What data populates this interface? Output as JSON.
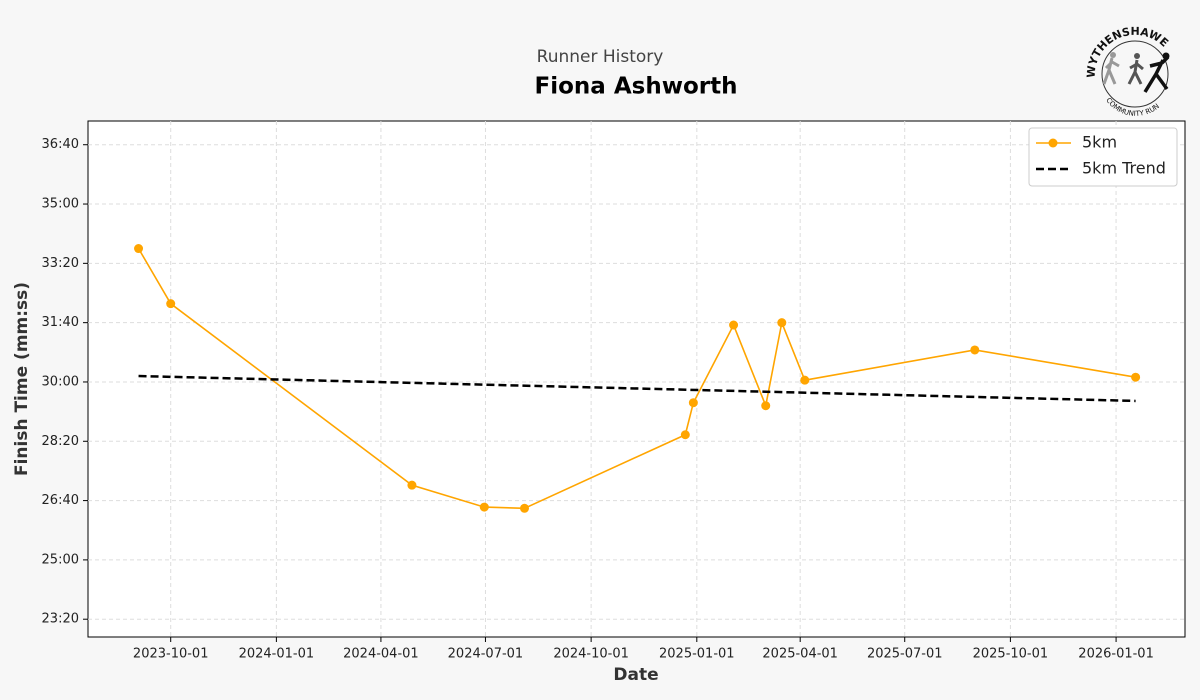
{
  "chart_data": {
    "type": "line",
    "subtitle": "Runner History",
    "title": "Fiona Ashworth",
    "logo_text": "WYTHENSHAWE",
    "logo_subtext": "COMMUNITY RUN",
    "x_label": "Date",
    "y_label": "Finish Time (mm:ss)",
    "x": [
      "2023-09-03",
      "2023-10-01",
      "2024-04-28",
      "2024-06-30",
      "2024-08-04",
      "2024-12-22",
      "2024-12-29",
      "2025-02-02",
      "2025-03-02",
      "2025-03-16",
      "2025-04-05",
      "2025-08-31",
      "2026-01-18"
    ],
    "series": [
      {
        "name": "5km",
        "color": "#ffa500",
        "marker": "circle",
        "dashed": false,
        "values": [
          2025,
          1932,
          1626,
          1589,
          1587,
          1711,
          1765,
          1896,
          1760,
          1900,
          1803,
          1854,
          1808
        ]
      },
      {
        "name": "5km Trend",
        "color": "#000000",
        "marker": "none",
        "dashed": true,
        "x": [
          "2023-09-03",
          "2026-01-18"
        ],
        "values": [
          1810,
          1768
        ]
      }
    ],
    "xlim": [
      "2023-07-21",
      "2026-03-02"
    ],
    "xticks": [
      "2023-10-01",
      "2024-01-01",
      "2024-04-01",
      "2024-07-01",
      "2024-10-01",
      "2025-01-01",
      "2025-04-01",
      "2025-07-01",
      "2025-10-01",
      "2026-01-01"
    ],
    "ylim": [
      1370,
      2240
    ],
    "yticks": [
      {
        "value": 1400,
        "label": "23:20"
      },
      {
        "value": 1500,
        "label": "25:00"
      },
      {
        "value": 1600,
        "label": "26:40"
      },
      {
        "value": 1700,
        "label": "28:20"
      },
      {
        "value": 1800,
        "label": "30:00"
      },
      {
        "value": 1900,
        "label": "31:40"
      },
      {
        "value": 2000,
        "label": "33:20"
      },
      {
        "value": 2100,
        "label": "35:00"
      },
      {
        "value": 2200,
        "label": "36:40"
      }
    ],
    "grid": true,
    "legend": "upper right"
  }
}
